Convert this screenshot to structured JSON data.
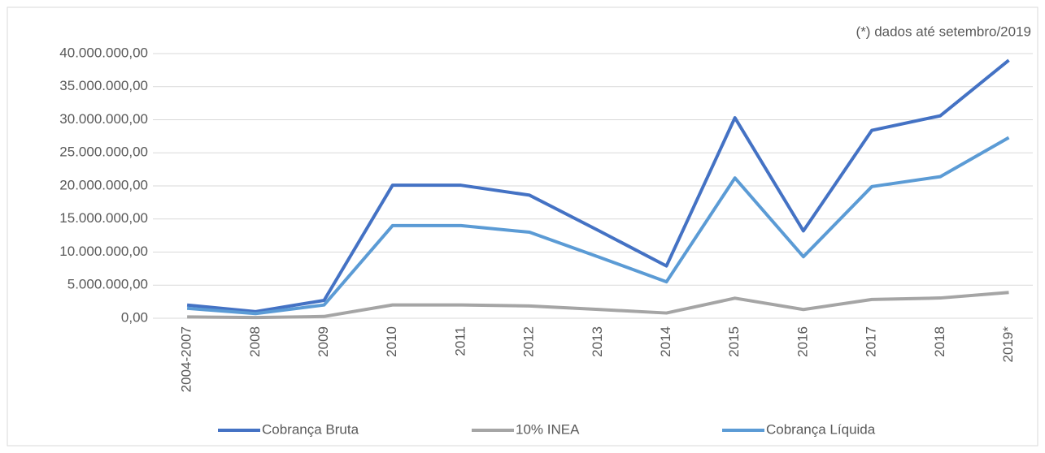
{
  "chart_data": {
    "type": "line",
    "annotation": "(*) dados até setembro/2019",
    "categories": [
      "2004-2007",
      "2008",
      "2009",
      "2010",
      "2011",
      "2012",
      "2013",
      "2014",
      "2015",
      "2016",
      "2017",
      "2018",
      "2019*"
    ],
    "series": [
      {
        "name": "Cobrança Bruta",
        "color": "#4472c4",
        "values": [
          2000000,
          1000000,
          2700000,
          20100000,
          20100000,
          18600000,
          13300000,
          7900000,
          30300000,
          13200000,
          28400000,
          30600000,
          39000000
        ]
      },
      {
        "name": "10% INEA",
        "color": "#a5a5a5",
        "values": [
          200000,
          100000,
          270000,
          2010000,
          2010000,
          1860000,
          1330000,
          790000,
          3030000,
          1320000,
          2840000,
          3060000,
          3900000
        ]
      },
      {
        "name": "Cobrança Líquida",
        "color": "#5b9bd5",
        "values": [
          1500000,
          700000,
          2000000,
          14000000,
          14000000,
          13000000,
          9300000,
          5500000,
          21200000,
          9300000,
          19900000,
          21400000,
          27300000
        ]
      }
    ],
    "ylim": [
      0,
      40000000
    ],
    "yticks": [
      {
        "value": 0,
        "label": "0,00"
      },
      {
        "value": 5000000,
        "label": "5.000.000,00"
      },
      {
        "value": 10000000,
        "label": "10.000.000,00"
      },
      {
        "value": 15000000,
        "label": "15.000.000,00"
      },
      {
        "value": 20000000,
        "label": "20.000.000,00"
      },
      {
        "value": 25000000,
        "label": "25.000.000,00"
      },
      {
        "value": 30000000,
        "label": "30.000.000,00"
      },
      {
        "value": 35000000,
        "label": "35.000.000,00"
      },
      {
        "value": 40000000,
        "label": "40.000.000,00"
      }
    ],
    "grid": true,
    "legend": "bottom"
  }
}
